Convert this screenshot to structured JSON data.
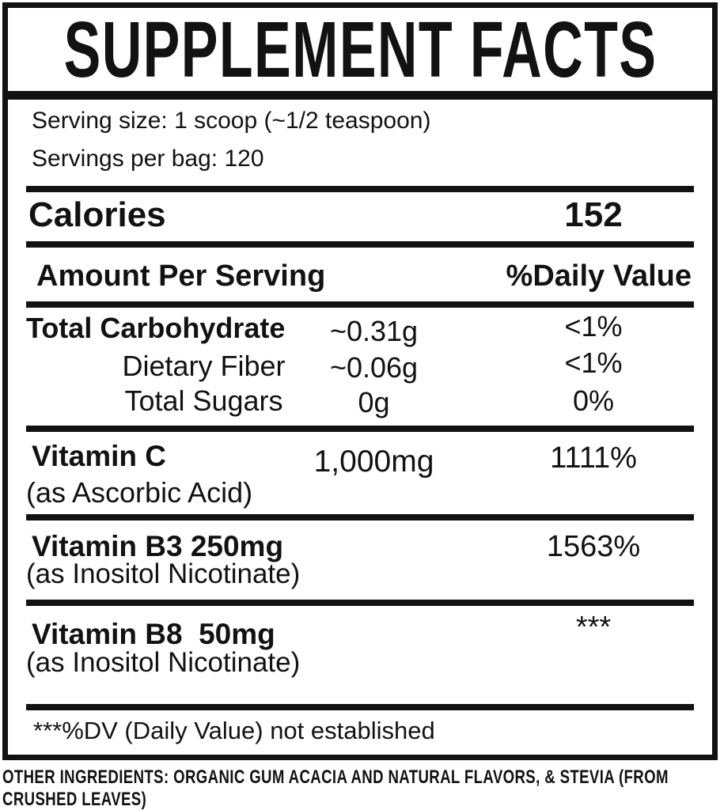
{
  "label": {
    "title": "SUPPLEMENT FACTS",
    "serving_size": "Serving size: 1 scoop (~1/2 teaspoon)",
    "servings_per_bag": "Servings per bag: 120",
    "calories_label": "Calories",
    "calories_value": "152",
    "amount_header": "Amount Per Serving",
    "dv_header": "%Daily Value",
    "nutrients": [
      {
        "name": "Total Carbohydrate",
        "amount": "~0.31g",
        "dv": "<1%"
      },
      {
        "name": "Dietary Fiber",
        "amount": "~0.06g",
        "dv": "<1%"
      },
      {
        "name": "Total Sugars",
        "amount": "0g",
        "dv": "0%"
      },
      {
        "name": "Vitamin C",
        "sub": "(as Ascorbic Acid)",
        "amount": "1,000mg",
        "dv": "1111%"
      },
      {
        "name": "Vitamin B3 250mg",
        "sub": "(as Inositol Nicotinate)",
        "dv": "1563%"
      },
      {
        "name": "Vitamin B8  50mg",
        "sub": "(as Inositol Nicotinate)",
        "dv": "***"
      }
    ],
    "footnote": "***%DV (Daily Value) not established",
    "other_ingredients": "OTHER INGREDIENTS: ORGANIC GUM ACACIA AND NATURAL FLAVORS, & STEVIA (FROM CRUSHED LEAVES)"
  },
  "colors": {
    "ink": "#121212",
    "background": "#ffffff"
  }
}
